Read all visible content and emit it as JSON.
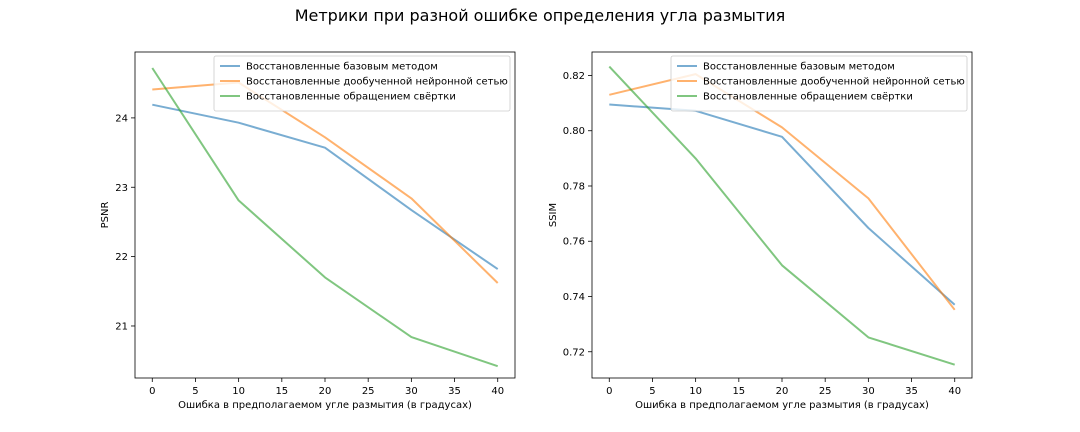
{
  "suptitle": "Метрики при разной ошибке определения угла размытия",
  "series_colors": [
    "#1f77b4",
    "#ff7f0e",
    "#2ca02c"
  ],
  "chart_data": [
    {
      "type": "line",
      "xlabel": "Ошибка в предполагаемом угле размытия (в градусах)",
      "ylabel": "PSNR",
      "xlim": [
        -2,
        42
      ],
      "ylim": [
        20.25,
        24.95
      ],
      "xticks": [
        0,
        5,
        10,
        15,
        20,
        25,
        30,
        35,
        40
      ],
      "yticks": [
        21,
        22,
        23,
        24
      ],
      "yticklabels": [
        "21",
        "22",
        "23",
        "24"
      ],
      "legend": "top-right",
      "x": [
        0,
        10,
        20,
        30,
        40
      ],
      "series": [
        {
          "name": "Восстановленные базовым методом",
          "values": [
            24.19,
            23.93,
            23.57,
            22.67,
            21.82
          ]
        },
        {
          "name": "Восстановленные дообученной нейронной сетью",
          "values": [
            24.41,
            24.51,
            23.72,
            22.84,
            21.62
          ]
        },
        {
          "name": "Восстановленные обращением свёртки",
          "values": [
            24.72,
            22.81,
            21.7,
            20.84,
            20.42
          ]
        }
      ]
    },
    {
      "type": "line",
      "xlabel": "Ошибка в предполагаемом угле размытия (в градусах)",
      "ylabel": "SSIM",
      "xlim": [
        -2,
        42
      ],
      "ylim": [
        0.7105,
        0.8285
      ],
      "xticks": [
        0,
        5,
        10,
        15,
        20,
        25,
        30,
        35,
        40
      ],
      "yticks": [
        0.72,
        0.74,
        0.76,
        0.78,
        0.8,
        0.82
      ],
      "yticklabels": [
        "0.72",
        "0.74",
        "0.76",
        "0.78",
        "0.80",
        "0.82"
      ],
      "legend": "top-right",
      "x": [
        0,
        10,
        20,
        30,
        40
      ],
      "series": [
        {
          "name": "Восстановленные базовым методом",
          "values": [
            0.8095,
            0.8072,
            0.7978,
            0.7648,
            0.737
          ]
        },
        {
          "name": "Восстановленные дообученной нейронной сетью",
          "values": [
            0.813,
            0.8205,
            0.8012,
            0.7755,
            0.7352
          ]
        },
        {
          "name": "Восстановленные обращением свёртки",
          "values": [
            0.8232,
            0.79,
            0.7513,
            0.7252,
            0.7153
          ]
        }
      ]
    }
  ]
}
